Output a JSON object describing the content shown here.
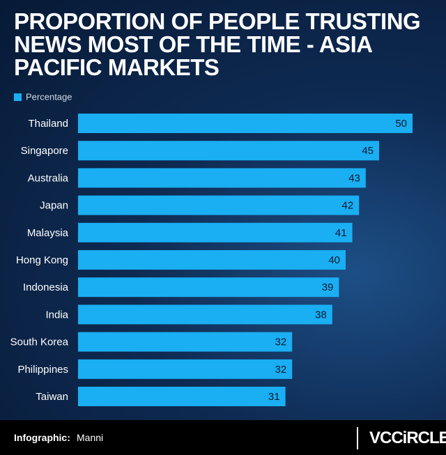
{
  "chart_data": {
    "type": "hbar",
    "title": "PROPORTION OF PEOPLE TRUSTING NEWS MOST OF THE TIME - ASIA PACIFIC MARKETS",
    "categories": [
      "Thailand",
      "Singapore",
      "Australia",
      "Japan",
      "Malaysia",
      "Hong Kong",
      "Indonesia",
      "India",
      "South Korea",
      "Philippines",
      "Taiwan"
    ],
    "series": [
      {
        "name": "Percentage",
        "color": "#1aaef2",
        "values": [
          50,
          45,
          43,
          42,
          41,
          40,
          39,
          38,
          32,
          32,
          31
        ]
      }
    ],
    "xlim": [
      0,
      50
    ],
    "legend": "top-left"
  },
  "footer": {
    "credit_label": "Infographic:",
    "credit_name": "Manni",
    "logo": "VCCiRCLE"
  }
}
